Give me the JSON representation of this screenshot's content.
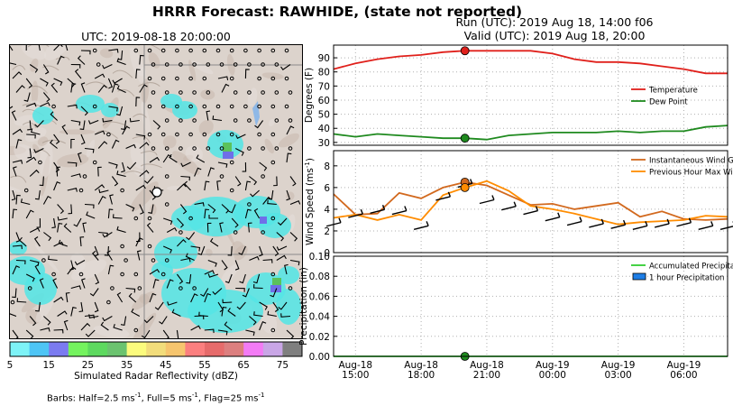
{
  "figure": {
    "title": "HRRR Forecast: RAWHIDE, (state not reported)",
    "map_title": "UTC: 2019-08-18 20:00:00",
    "run_line": "Run (UTC): 2019 Aug 18, 14:00 f06",
    "valid_line": "Valid (UTC): 2019 Aug 18, 20:00",
    "barbs_prefix": "Barbs: Half=2.5 ms",
    "barbs_mid1": ", Full=5 ms",
    "barbs_mid2": ", Flag=25 ms",
    "unit_exp": "-1"
  },
  "colorbar": {
    "label": "Simulated Radar Reflectivity (dBZ)",
    "ticks": [
      "5",
      "15",
      "25",
      "35",
      "45",
      "55",
      "65",
      "75"
    ],
    "colors": [
      "#7df3f7",
      "#4ec5f5",
      "#7b7bf0",
      "#74f35e",
      "#5dd95f",
      "#6bc36f",
      "#fbfb7d",
      "#f2dd7b",
      "#f6c56e",
      "#fb7f7f",
      "#e66b6b",
      "#dc7f7f",
      "#f37bf5",
      "#c9a6e6",
      "#7f7f7f"
    ]
  },
  "chart_data": [
    {
      "type": "line",
      "panel": "temperature",
      "ylabel": "Degrees (F)",
      "ylim": [
        28,
        99
      ],
      "yticks": [
        30,
        40,
        50,
        60,
        70,
        80,
        90
      ],
      "x_hours_since_2019-08-18_14:00": [
        0,
        1,
        2,
        3,
        4,
        5,
        6,
        7,
        8,
        9,
        10,
        11,
        12,
        13,
        14,
        15,
        16,
        17,
        18
      ],
      "series": [
        {
          "name": "Temperature",
          "color": "#e0201b",
          "values": [
            82,
            86,
            89,
            91,
            92,
            94,
            95,
            95,
            95,
            95,
            93,
            89,
            87,
            87,
            86,
            84,
            82,
            79,
            79
          ],
          "marker_index": 6
        },
        {
          "name": "Dew Point",
          "color": "#1f8a1f",
          "values": [
            36,
            34,
            36,
            35,
            34,
            33,
            33,
            32,
            35,
            36,
            37,
            37,
            37,
            38,
            37,
            38,
            38,
            41,
            42
          ],
          "marker_index": 6
        }
      ],
      "legend": "center-right",
      "grid": true
    },
    {
      "type": "line",
      "panel": "wind",
      "ylabel": "Wind Speed (ms",
      "ylabel_unit_exp": "-1",
      "ylim": [
        0,
        9.4
      ],
      "yticks": [
        0,
        2,
        4,
        6,
        8
      ],
      "series": [
        {
          "name": "Instantaneous Wind Gust",
          "color": "#d2691e",
          "values": [
            5.4,
            3.5,
            3.6,
            5.5,
            5.0,
            6.0,
            6.5,
            6.2,
            5.3,
            4.4,
            4.5,
            4.0,
            4.3,
            4.6,
            3.3,
            3.8,
            3.1,
            3.0,
            3.1
          ]
        },
        {
          "name": "Previous Hour Max Wind",
          "color": "#ff8c00",
          "values": [
            3.2,
            3.5,
            3.0,
            3.5,
            3.0,
            5.3,
            6.0,
            6.6,
            5.7,
            4.3,
            4.0,
            3.6,
            3.1,
            2.6,
            2.8,
            2.9,
            3.0,
            3.4,
            3.3
          ]
        }
      ],
      "barb_heights": [
        2.6,
        3.4,
        3.8,
        3.7,
        2.3,
        5.0,
        6.2,
        4.7,
        4.1,
        3.7,
        3.1,
        2.7,
        2.5,
        2.4,
        2.3,
        2.5,
        2.6,
        2.3,
        2.3
      ],
      "legend": "top-right",
      "grid": true
    },
    {
      "type": "bar",
      "panel": "precipitation",
      "ylabel": "Precipitation (in)",
      "ylim": [
        0,
        0.1
      ],
      "yticks": [
        "0.00",
        "0.02",
        "0.04",
        "0.06",
        "0.08",
        "0.10"
      ],
      "series": [
        {
          "name": "Accumulated Precipitation",
          "color": "#32cd32",
          "values": [
            0,
            0,
            0,
            0,
            0,
            0,
            0,
            0,
            0,
            0,
            0,
            0,
            0,
            0,
            0,
            0,
            0,
            0,
            0
          ]
        },
        {
          "name": "1 hour Precipitation",
          "color": "#1e7ee6",
          "values": [
            0,
            0,
            0,
            0,
            0,
            0,
            0,
            0,
            0,
            0,
            0,
            0,
            0,
            0,
            0,
            0,
            0,
            0,
            0
          ]
        }
      ],
      "xticks": [
        "Aug-18\n15:00",
        "Aug-18\n18:00",
        "Aug-18\n21:00",
        "Aug-19\n00:00",
        "Aug-19\n03:00",
        "Aug-19\n06:00"
      ],
      "xtick_hours": [
        1,
        4,
        7,
        10,
        13,
        16
      ],
      "legend": "top-right",
      "grid": true
    }
  ]
}
